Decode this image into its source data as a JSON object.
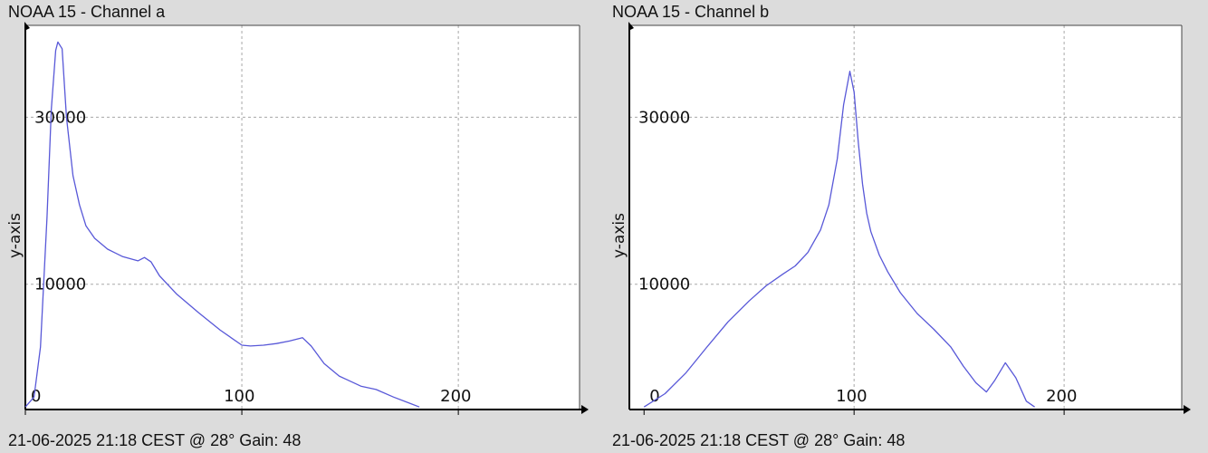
{
  "colors": {
    "line": "#5858d8",
    "grid": "#a8a8a8",
    "axis": "#000000",
    "plot_bg": "#ffffff",
    "window_bg": "#dcdcdc"
  },
  "panels": [
    {
      "title": "NOAA 15 - Channel a",
      "footer": "21-06-2025 21:18 CEST @ 28° Gain: 48"
    },
    {
      "title": "NOAA 15 - Channel b",
      "footer": "21-06-2025 21:18 CEST @ 28° Gain: 48"
    }
  ],
  "chart_data": [
    {
      "type": "line",
      "title": "NOAA 15 - Channel a",
      "xlabel": "",
      "ylabel": "y-axis",
      "xlim": [
        0,
        256
      ],
      "ylim": [
        -5000,
        41000
      ],
      "xticks": [
        0,
        100,
        200
      ],
      "xtick_labels": [
        "0",
        "100",
        "200"
      ],
      "yticks": [
        10000,
        30000
      ],
      "ytick_labels": [
        "10000",
        "30000"
      ],
      "grid": true,
      "series": [
        {
          "x": [
            0,
            4,
            7,
            10,
            12,
            14,
            15,
            17,
            19,
            22,
            25,
            28,
            32,
            38,
            45,
            52,
            55,
            58,
            62,
            70,
            80,
            90,
            100,
            104,
            110,
            116,
            122,
            128,
            132,
            138,
            145,
            155,
            162,
            170,
            178,
            182
          ],
          "values": [
            -4700,
            -3500,
            2500,
            18000,
            31000,
            38000,
            39000,
            38200,
            30000,
            23000,
            19500,
            17000,
            15500,
            14200,
            13300,
            12800,
            13200,
            12700,
            11000,
            8800,
            6600,
            4500,
            2700,
            2600,
            2700,
            2900,
            3200,
            3600,
            2600,
            500,
            -1000,
            -2200,
            -2600,
            -3500,
            -4300,
            -4700
          ]
        }
      ]
    },
    {
      "type": "line",
      "title": "NOAA 15 - Channel b",
      "xlabel": "",
      "ylabel": "y-axis",
      "xlim": [
        -7,
        256
      ],
      "ylim": [
        -5000,
        41000
      ],
      "xticks": [
        0,
        100,
        200
      ],
      "xtick_labels": [
        "0",
        "100",
        "200"
      ],
      "yticks": [
        10000,
        30000
      ],
      "ytick_labels": [
        "10000",
        "30000"
      ],
      "grid": true,
      "series": [
        {
          "x": [
            0,
            10,
            20,
            30,
            40,
            50,
            58,
            66,
            72,
            78,
            84,
            88,
            92,
            95,
            98,
            100,
            102,
            104,
            106,
            108,
            112,
            116,
            122,
            130,
            138,
            146,
            152,
            158,
            163,
            167,
            172,
            177,
            182,
            186
          ],
          "values": [
            -4700,
            -3100,
            -600,
            2500,
            5500,
            8000,
            9800,
            11200,
            12200,
            13800,
            16500,
            19500,
            25000,
            31500,
            35500,
            33000,
            27000,
            22000,
            18500,
            16300,
            13500,
            11500,
            9000,
            6500,
            4600,
            2500,
            200,
            -1800,
            -2900,
            -1500,
            600,
            -1200,
            -4000,
            -4700
          ]
        }
      ]
    }
  ]
}
